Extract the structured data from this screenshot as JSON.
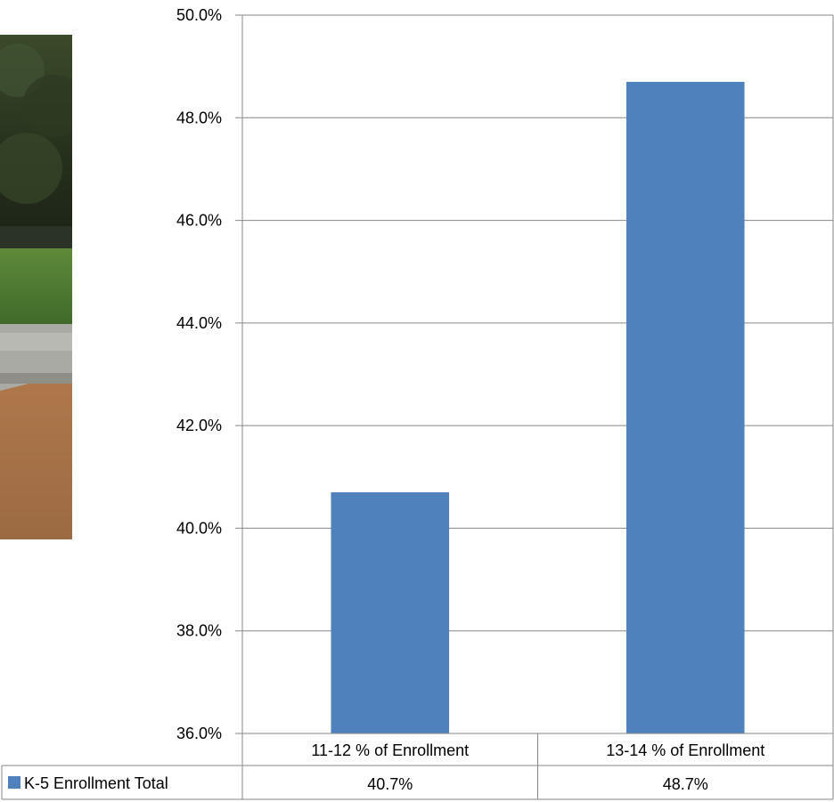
{
  "chart_data": {
    "type": "bar",
    "categories": [
      "11-12 % of Enrollment",
      "13-14 % of Enrollment"
    ],
    "series": [
      {
        "name": "K-5 Enrollment Total",
        "values": [
          40.7,
          48.7
        ],
        "value_labels": [
          "40.7%",
          "48.7%"
        ],
        "color": "#4F81BD"
      }
    ],
    "ylim": [
      36.0,
      50.0
    ],
    "yticks": [
      36.0,
      38.0,
      40.0,
      42.0,
      44.0,
      46.0,
      48.0,
      50.0
    ],
    "ytick_labels": [
      "36.0%",
      "38.0%",
      "40.0%",
      "42.0%",
      "44.0%",
      "46.0%",
      "48.0%",
      "50.0%"
    ],
    "grid": true,
    "legend": "data-table-left",
    "data_table": true
  },
  "colors": {
    "bar": "#4F81BD",
    "gridline": "#868686",
    "table_border": "#868686"
  }
}
